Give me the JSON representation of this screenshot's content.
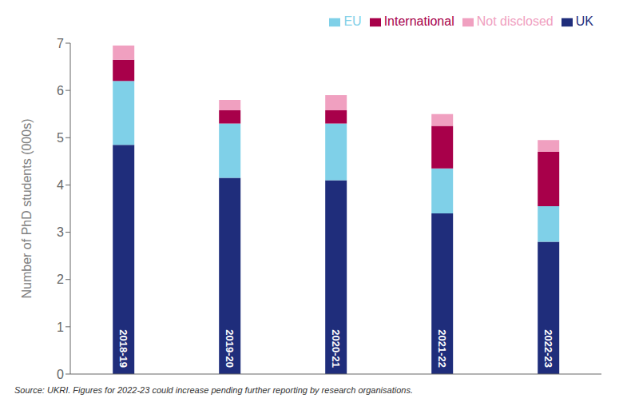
{
  "chart_data": {
    "type": "bar",
    "stacked": true,
    "categories": [
      "2018-19",
      "2019-20",
      "2020-21",
      "2021-22",
      "2022-23"
    ],
    "series": [
      {
        "name": "UK",
        "color": "#1f2d7b",
        "values": [
          4.85,
          4.15,
          4.1,
          3.4,
          2.8
        ]
      },
      {
        "name": "EU",
        "color": "#7fd0e8",
        "values": [
          1.35,
          1.15,
          1.2,
          0.95,
          0.75
        ]
      },
      {
        "name": "International",
        "color": "#a8004a",
        "values": [
          0.45,
          0.28,
          0.28,
          0.9,
          1.15
        ]
      },
      {
        "name": "Not disclosed",
        "color": "#f0a0c0",
        "values": [
          0.3,
          0.22,
          0.32,
          0.25,
          0.25
        ]
      }
    ],
    "ylabel": "Number of PhD students (000s)",
    "ylim": [
      0,
      7
    ],
    "yticks": [
      0,
      1,
      2,
      3,
      4,
      5,
      6,
      7
    ],
    "grid": false,
    "legend": "upper right",
    "tick_labels": "y",
    "annotations": [
      "Source: UKRI. Figures for 2022-23 could increase pending further reporting by research organisations."
    ]
  }
}
